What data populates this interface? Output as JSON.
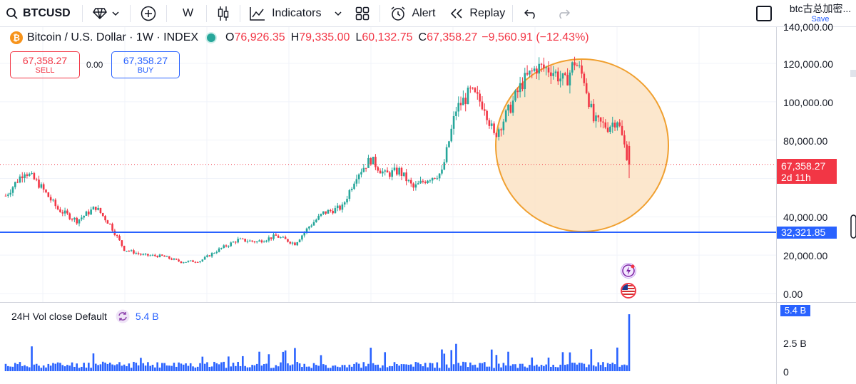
{
  "toolbar": {
    "symbol": "BTCUSD",
    "interval": "W",
    "indicators_label": "Indicators",
    "alert_label": "Alert",
    "replay_label": "Replay",
    "layout_title": "btc古总加密...",
    "save_label": "Save"
  },
  "legend": {
    "title": "Bitcoin / U.S. Dollar · 1W · INDEX",
    "open_key": "O",
    "open": "76,926.35",
    "high_key": "H",
    "high": "79,335.00",
    "low_key": "L",
    "low": "60,132.75",
    "close_key": "C",
    "close": "67,358.27",
    "change": "−9,560.91 (−12.43%)"
  },
  "trade": {
    "sell_price": "67,358.27",
    "sell_label": "SELL",
    "spread": "0.00",
    "buy_price": "67,358.27",
    "buy_label": "BUY"
  },
  "price_scale": {
    "labels": [
      "140,000.00",
      "120,000.00",
      "100,000.00",
      "80,000.00",
      "40,000.00",
      "20,000.00",
      "0.00"
    ],
    "last_price": "67,358.27",
    "countdown": "2d 11h",
    "hline_price": "32,321.85"
  },
  "volume": {
    "label": "24H Vol close Default",
    "value": "5.4 B",
    "scale_labels": [
      "2.5 B",
      "0"
    ],
    "last_tag": "5.4 B"
  },
  "colors": {
    "up": "#26a69a",
    "down": "#f23645",
    "accent": "#2962ff",
    "highlight_circle_stroke": "#f0a030",
    "highlight_circle_fill": "#fbe3c4"
  },
  "icons": [
    "search-icon",
    "diamond-icon",
    "plus-circle-icon",
    "candles-icon",
    "indicators-icon",
    "chevron-down-icon",
    "grid-icon",
    "alarm-icon",
    "replay-icon",
    "undo-icon",
    "redo-icon",
    "refresh-icon"
  ],
  "chart_data": {
    "type": "candlestick",
    "title": "Bitcoin / U.S. Dollar · 1W · INDEX",
    "y_range": [
      0,
      140000
    ],
    "horizontal_line": 32321.85,
    "last_close": 67358.27,
    "highlight": "circle around recent peak and drop",
    "weekly_close_path": [
      {
        "idx": 0,
        "close": 51000
      },
      {
        "idx": 8,
        "close": 64000
      },
      {
        "idx": 14,
        "close": 57000
      },
      {
        "idx": 22,
        "close": 44000
      },
      {
        "idx": 30,
        "close": 38000
      },
      {
        "idx": 38,
        "close": 45000
      },
      {
        "idx": 44,
        "close": 36000
      },
      {
        "idx": 50,
        "close": 23000
      },
      {
        "idx": 58,
        "close": 20000
      },
      {
        "idx": 66,
        "close": 19500
      },
      {
        "idx": 74,
        "close": 16500
      },
      {
        "idx": 82,
        "close": 17000
      },
      {
        "idx": 90,
        "close": 23000
      },
      {
        "idx": 98,
        "close": 28000
      },
      {
        "idx": 106,
        "close": 27000
      },
      {
        "idx": 114,
        "close": 30000
      },
      {
        "idx": 122,
        "close": 26000
      },
      {
        "idx": 128,
        "close": 35000
      },
      {
        "idx": 134,
        "close": 42000
      },
      {
        "idx": 142,
        "close": 45000
      },
      {
        "idx": 148,
        "close": 62000
      },
      {
        "idx": 154,
        "close": 70000
      },
      {
        "idx": 160,
        "close": 62000
      },
      {
        "idx": 166,
        "close": 64000
      },
      {
        "idx": 172,
        "close": 55000
      },
      {
        "idx": 178,
        "close": 60000
      },
      {
        "idx": 184,
        "close": 63000
      },
      {
        "idx": 190,
        "close": 96000
      },
      {
        "idx": 196,
        "close": 105000
      },
      {
        "idx": 202,
        "close": 98000
      },
      {
        "idx": 206,
        "close": 82000
      },
      {
        "idx": 212,
        "close": 95000
      },
      {
        "idx": 218,
        "close": 110000
      },
      {
        "idx": 224,
        "close": 118000
      },
      {
        "idx": 230,
        "close": 117000
      },
      {
        "idx": 236,
        "close": 110000
      },
      {
        "idx": 240,
        "close": 121000
      },
      {
        "idx": 244,
        "close": 112000
      },
      {
        "idx": 248,
        "close": 90000
      },
      {
        "idx": 254,
        "close": 87000
      },
      {
        "idx": 258,
        "close": 91000
      },
      {
        "idx": 261,
        "close": 77000
      },
      {
        "idx": 263,
        "close": 67358.27
      }
    ]
  }
}
